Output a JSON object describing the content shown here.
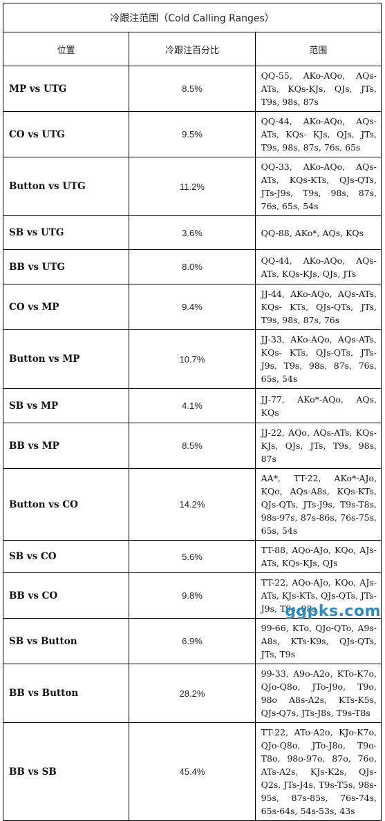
{
  "title": "冷跟注范围（Cold Calling Ranges）",
  "headers": {
    "position": "位置",
    "percent": "冷跟注百分比",
    "range": "范围"
  },
  "rows": [
    {
      "position": "MP vs UTG",
      "percent": "8.5%",
      "range": "QQ-55, AKo-AQo, AQs-ATs, KQs-KJs, QJs, JTs, T9s, 98s, 87s"
    },
    {
      "position": "CO vs UTG",
      "percent": "9.5%",
      "range": "QQ-44, AKo-AQo, AQs-ATs, KQs- KJs, QJs, JTs, T9s, 98s, 87s, 76s, 65s"
    },
    {
      "position": "Button vs UTG",
      "percent": "11.2%",
      "range": "QQ-33, AKo-AQo, AQs-ATs, KQs-KTs, QJs-QTs, JTs-J9s, T9s, 98s, 87s, 76s, 65s, 54s"
    },
    {
      "position": "SB vs UTG",
      "percent": "3.6%",
      "range": "QQ-88, AKo*, AQs, KQs"
    },
    {
      "position": "BB vs UTG",
      "percent": "8.0%",
      "range": "QQ-44, AKo-AQo, AQs-ATs, KQs-KJs, QJs, JTs"
    },
    {
      "position": "CO vs MP",
      "percent": "9.4%",
      "range": "JJ-44, AKo-AQo, AQs-ATs, KQs- KTs, QJs-QTs, JTs, T9s, 98s, 87s, 76s"
    },
    {
      "position": "Button vs MP",
      "percent": "10.7%",
      "range": "JJ-33, AKo-AQo, AQs-ATs, KQs- KTs, QJs-QTs, JTs-J9s, T9s, 98s, 87s, 76s, 65s, 54s"
    },
    {
      "position": "SB vs MP",
      "percent": "4.1%",
      "range": "JJ-77, AKo*-AQo, AQs, KQs"
    },
    {
      "position": "BB vs MP",
      "percent": "8.5%",
      "range": "JJ-22, AQo, AQs-ATs, KQs-KJs, QJs, JTs, T9s, 98s, 87s"
    },
    {
      "position": "Button vs CO",
      "percent": "14.2%",
      "range": "AA*, TT-22, AKo*-AJo, KQo, AQs-A8s, KQs-KTs, QJs-QTs, JTs-J9s, T9s-T8s, 98s-97s, 87s-86s, 76s-75s, 65s, 54s"
    },
    {
      "position": "SB vs CO",
      "percent": "5.6%",
      "range": "TT-88, AQo-AJo, KQo, AJs-ATs, KQs-KJs, QJs"
    },
    {
      "position": "BB vs CO",
      "percent": "9.8%",
      "range": "TT-22, AQo-AJo, KQo, AJs-ATs, KJs-KTs, QJs-QTs, JTs-J9s, T9s, 98s"
    },
    {
      "position": "SB vs Button",
      "percent": "6.9%",
      "range": "99-66, KTo, QJo-QTo, A9s-A8s, KTs-K9s, QJs-QTs, JTs, T9s"
    },
    {
      "position": "BB vs Button",
      "percent": "28.2%",
      "range": "99-33, A9o-A2o, KTo-K7o, QJo-Q8o, JTo-J9o, T9o, 98o A8s-A2s, KTs-K5s, QJs-Q7s, JTs-J8s, T9s-T8s"
    },
    {
      "position": "BB vs SB",
      "percent": "45.4%",
      "range": "TT-22, ATo-A2o, KJo-K7o, QJo-Q8o, JTo-J8o, T9o-T8o, 98o-97o, 87o, 76o, ATs-A2s, KJs-K2s, QJs-Q2s, JTs-J4s, T9s-T5s, 98s-95s, 87s-85s, 76s-74s, 65s-64s, 54s-53s, 43s"
    }
  ],
  "watermark": "ggpks.com"
}
